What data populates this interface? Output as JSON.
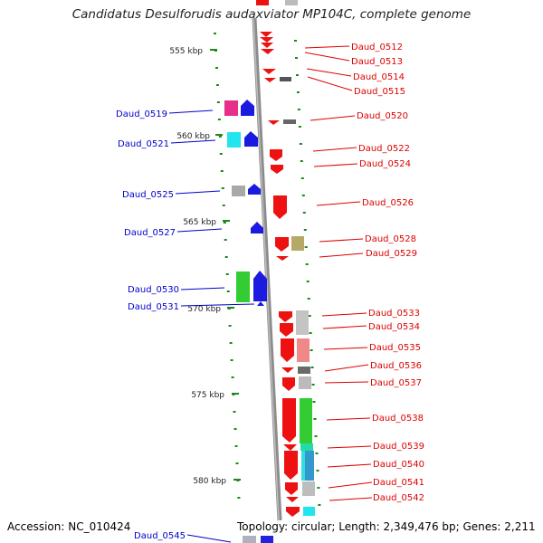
{
  "title": "Candidatus Desulforudis audaxviator MP104C, complete genome",
  "footer": {
    "accession": "Accession: NC_010424",
    "summary": "Topology: circular; Length: 2,349,476 bp; Genes: 2,211"
  },
  "scale_labels": [
    "555 kbp",
    "560 kbp",
    "565 kbp",
    "570 kbp",
    "575 kbp",
    "580 kbp"
  ],
  "colors": {
    "forward_label": "#dd0000",
    "reverse_label": "#0000cc",
    "backbone": "#888888",
    "tick": "#1a8a1a"
  },
  "forward_genes": [
    "Daud_0512",
    "Daud_0513",
    "Daud_0514",
    "Daud_0515",
    "Daud_0520",
    "Daud_0522",
    "Daud_0524",
    "Daud_0526",
    "Daud_0528",
    "Daud_0529",
    "Daud_0533",
    "Daud_0534",
    "Daud_0535",
    "Daud_0536",
    "Daud_0537",
    "Daud_0538",
    "Daud_0539",
    "Daud_0540",
    "Daud_0541",
    "Daud_0542"
  ],
  "reverse_genes": [
    "Daud_0519",
    "Daud_0521",
    "Daud_0525",
    "Daud_0527",
    "Daud_0530",
    "Daud_0531",
    "Daud_0545"
  ]
}
